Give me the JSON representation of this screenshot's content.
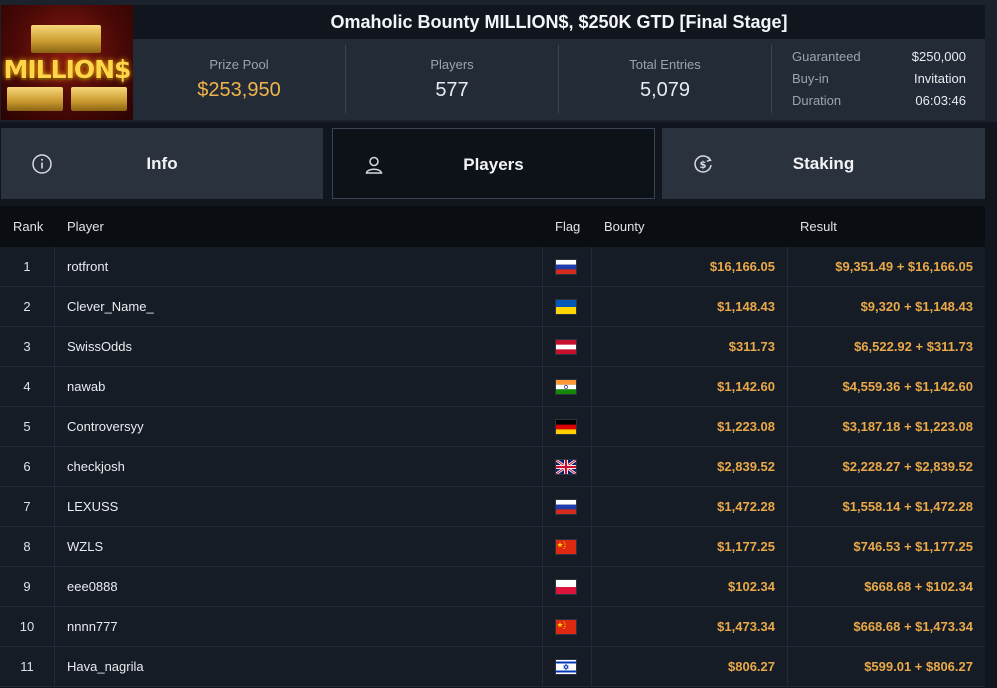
{
  "tournament": {
    "title": "Omaholic Bounty MILLION$, $250K GTD [Final Stage]",
    "logo_text": "MILLION$"
  },
  "stats": {
    "prize_pool_label": "Prize Pool",
    "prize_pool_value": "$253,950",
    "players_label": "Players",
    "players_value": "577",
    "entries_label": "Total Entries",
    "entries_value": "5,079"
  },
  "details": [
    {
      "key": "Guaranteed",
      "value": "$250,000"
    },
    {
      "key": "Buy-in",
      "value": "Invitation"
    },
    {
      "key": "Duration",
      "value": "06:03:46"
    }
  ],
  "tabs": [
    {
      "label": "Info",
      "icon": "info-icon",
      "active": false
    },
    {
      "label": "Players",
      "icon": "user-icon",
      "active": true
    },
    {
      "label": "Staking",
      "icon": "dollar-cycle-icon",
      "active": false
    }
  ],
  "table": {
    "headers": {
      "rank": "Rank",
      "player": "Player",
      "flag": "Flag",
      "bounty": "Bounty",
      "result": "Result"
    },
    "rows": [
      {
        "rank": "1",
        "player": "rotfront",
        "flag": "russia-flag",
        "bounty": "$16,166.05",
        "result": "$9,351.49 + $16,166.05"
      },
      {
        "rank": "2",
        "player": "Clever_Name_",
        "flag": "ukraine-flag",
        "bounty": "$1,148.43",
        "result": "$9,320 + $1,148.43"
      },
      {
        "rank": "3",
        "player": "SwissOdds",
        "flag": "austria-flag",
        "bounty": "$311.73",
        "result": "$6,522.92 + $311.73"
      },
      {
        "rank": "4",
        "player": "nawab",
        "flag": "india-flag",
        "bounty": "$1,142.60",
        "result": "$4,559.36 + $1,142.60"
      },
      {
        "rank": "5",
        "player": "Controversyy",
        "flag": "germany-flag",
        "bounty": "$1,223.08",
        "result": "$3,187.18 + $1,223.08"
      },
      {
        "rank": "6",
        "player": "checkjosh",
        "flag": "uk-flag",
        "bounty": "$2,839.52",
        "result": "$2,228.27 + $2,839.52"
      },
      {
        "rank": "7",
        "player": "LEXUSS",
        "flag": "russia-flag",
        "bounty": "$1,472.28",
        "result": "$1,558.14 + $1,472.28"
      },
      {
        "rank": "8",
        "player": "WZLS",
        "flag": "china-flag",
        "bounty": "$1,177.25",
        "result": "$746.53 + $1,177.25"
      },
      {
        "rank": "9",
        "player": "eee0888",
        "flag": "poland-flag",
        "bounty": "$102.34",
        "result": "$668.68 + $102.34"
      },
      {
        "rank": "10",
        "player": "nnnn777",
        "flag": "china-flag",
        "bounty": "$1,473.34",
        "result": "$668.68 + $1,473.34"
      },
      {
        "rank": "11",
        "player": "Hava_nagrila",
        "flag": "israel-flag",
        "bounty": "$806.27",
        "result": "$599.01 + $806.27"
      }
    ]
  },
  "colors": {
    "accent_gold": "#f0b44c",
    "bounty_gold": "#e9a94a",
    "background": "#11161e"
  }
}
